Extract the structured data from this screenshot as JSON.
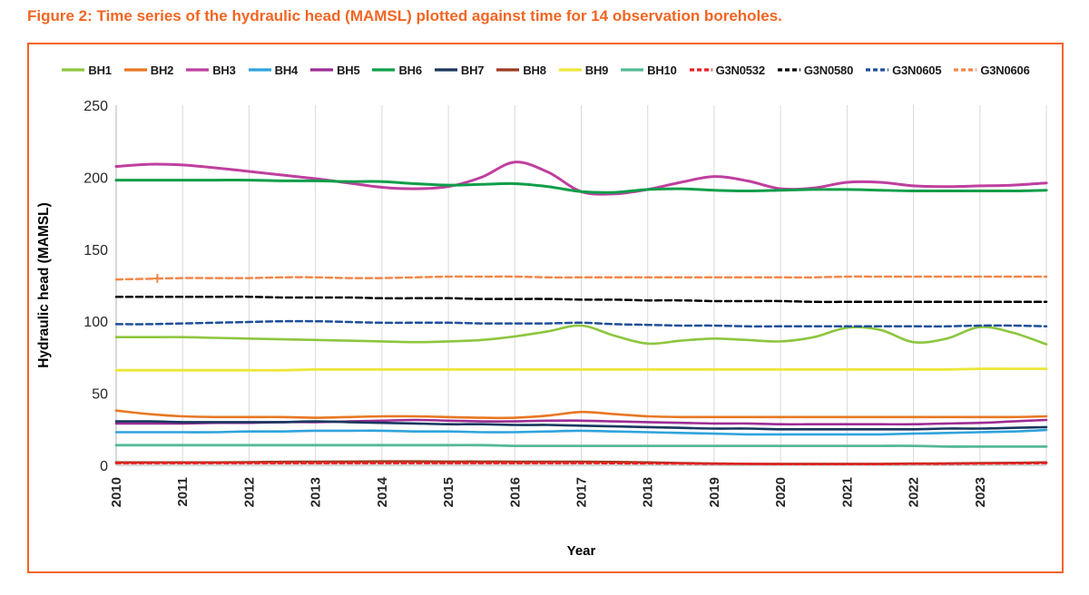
{
  "chart_data": {
    "type": "line",
    "title": "Figure 2: Time series of the hydraulic head (MAMSL) plotted against time for 14 observation boreholes.",
    "xlabel": "Year",
    "ylabel": "Hydraulic head (MAMSL)",
    "xlim": [
      2010,
      2024
    ],
    "ylim": [
      0,
      250
    ],
    "x_ticks": [
      2010,
      2011,
      2012,
      2013,
      2014,
      2015,
      2016,
      2017,
      2018,
      2019,
      2020,
      2021,
      2022,
      2023
    ],
    "y_ticks": [
      0,
      50,
      100,
      150,
      200,
      250
    ],
    "grid": "vertical-only",
    "legend_position": "top",
    "title_color": "#F26522",
    "border_color": "#F26522",
    "gridline_color": "#D9D9D9",
    "axis_color": "#BFBFBF",
    "x_start": 2010,
    "x_step": 0.5,
    "series": [
      {
        "name": "BH1",
        "color": "#8DC63F",
        "dash": "",
        "width": 2.6,
        "values": [
          89,
          89,
          89,
          88.5,
          88,
          87.5,
          87,
          86.5,
          86,
          85.5,
          86,
          87,
          89.5,
          93,
          97,
          90,
          84.5,
          86.5,
          88,
          87,
          86,
          89,
          95.5,
          94,
          85.5,
          88,
          96,
          92,
          84
        ]
      },
      {
        "name": "BH2",
        "color": "#E87722",
        "dash": "",
        "width": 2.6,
        "values": [
          38,
          35.5,
          34,
          33.5,
          33.5,
          33.5,
          33,
          33.5,
          34,
          34,
          33.5,
          33,
          33,
          34.5,
          37,
          35.5,
          34,
          33.5,
          33.5,
          33.5,
          33.5,
          33.5,
          33.5,
          33.5,
          33.5,
          33.5,
          33.5,
          33.5,
          34
        ]
      },
      {
        "name": "BH3",
        "color": "#BF3F9F",
        "dash": "",
        "width": 3,
        "values": [
          207.5,
          209,
          208.5,
          206.5,
          204,
          201.5,
          199,
          196,
          193,
          192,
          193.5,
          200,
          210.5,
          203.5,
          190,
          188.5,
          191.5,
          196.5,
          200.5,
          197.5,
          192,
          192.5,
          196.5,
          196.5,
          194,
          193.5,
          194,
          194.5,
          196
        ]
      },
      {
        "name": "BH4",
        "color": "#2FA3DC",
        "dash": "",
        "width": 2.6,
        "values": [
          23,
          23,
          23,
          23,
          23.5,
          23.5,
          24,
          24,
          24,
          23.5,
          23.5,
          23,
          23,
          23.5,
          24,
          23.5,
          23,
          22.5,
          22,
          21.5,
          21.5,
          21.5,
          21.5,
          21.5,
          22,
          22.5,
          23,
          23.5,
          24.5
        ]
      },
      {
        "name": "BH5",
        "color": "#9C2C94",
        "dash": "",
        "width": 2.6,
        "values": [
          29,
          29,
          29,
          29.5,
          29.5,
          30,
          30,
          30.5,
          31,
          31.5,
          31,
          30.5,
          30.5,
          31,
          31,
          30.5,
          30,
          29.5,
          29,
          29,
          28.5,
          28.5,
          28.5,
          28.5,
          28.5,
          29,
          29.5,
          30.5,
          31.5
        ]
      },
      {
        "name": "BH6",
        "color": "#0E9E49",
        "dash": "",
        "width": 3,
        "values": [
          198,
          198,
          198,
          198,
          198,
          197.5,
          197.5,
          197,
          197,
          195.5,
          194.5,
          195,
          195.5,
          193.5,
          190,
          189.5,
          191.5,
          192,
          191,
          190.5,
          191,
          191.5,
          191.5,
          191,
          190.5,
          190.5,
          190.5,
          190.5,
          191
        ]
      },
      {
        "name": "BH7",
        "color": "#17375E",
        "dash": "",
        "width": 2.6,
        "values": [
          30.5,
          30.5,
          30,
          30,
          30,
          30,
          30.5,
          30,
          29.5,
          29,
          28.5,
          28.5,
          28,
          28,
          27.5,
          27,
          26.5,
          26,
          25.5,
          25.5,
          25,
          25,
          25,
          25,
          25,
          25.5,
          25.5,
          26,
          26.5
        ]
      },
      {
        "name": "BH8",
        "color": "#9C3A1D",
        "dash": "",
        "width": 2.6,
        "values": [
          2,
          2,
          2,
          2,
          2.2,
          2.4,
          2.5,
          2.6,
          2.7,
          2.7,
          2.6,
          2.6,
          2.5,
          2.5,
          2.5,
          2.3,
          2,
          1.6,
          1.2,
          1,
          1,
          1,
          1,
          1,
          1.2,
          1.3,
          1.5,
          1.7,
          2
        ]
      },
      {
        "name": "BH9",
        "color": "#EDE637",
        "dash": "",
        "width": 2.8,
        "values": [
          66,
          66,
          66,
          66,
          66,
          66,
          66.5,
          66.5,
          66.5,
          66.5,
          66.5,
          66.5,
          66.5,
          66.5,
          66.5,
          66.5,
          66.5,
          66.5,
          66.5,
          66.5,
          66.5,
          66.5,
          66.5,
          66.5,
          66.5,
          66.5,
          67,
          67,
          67
        ]
      },
      {
        "name": "BH10",
        "color": "#55B995",
        "dash": "",
        "width": 2.8,
        "values": [
          14,
          14,
          14,
          14,
          14,
          14,
          14,
          14,
          14,
          14,
          14,
          14,
          13.5,
          13.5,
          13.5,
          13.5,
          13.5,
          13.5,
          13.5,
          13.5,
          13.5,
          13.5,
          13.5,
          13.5,
          13.5,
          13,
          13,
          13,
          13
        ]
      },
      {
        "name": "G3N0532",
        "color": "#EC1C24",
        "dash": "5 3.5",
        "width": 2.5,
        "values": [
          1.5,
          1.5,
          1.5,
          1.5,
          1.5,
          1.5,
          1.5,
          1.5,
          1.5,
          1.5,
          1.5,
          1.5,
          1.5,
          1.5,
          1.5,
          1.4,
          1.3,
          1.2,
          1,
          1,
          0.8,
          0.8,
          0.8,
          0.8,
          1,
          1,
          1.2,
          1.3,
          1.5
        ]
      },
      {
        "name": "G3N0580",
        "color": "#000000",
        "dash": "7 4",
        "width": 2.5,
        "values": [
          117,
          117,
          117,
          117,
          117,
          116.5,
          116.5,
          116.5,
          116,
          116,
          116,
          115.5,
          115.5,
          115.5,
          115,
          115,
          114.5,
          114.5,
          114,
          114,
          114,
          113.5,
          113.5,
          113.5,
          113.5,
          113.5,
          113.5,
          113.5,
          113.5
        ]
      },
      {
        "name": "G3N0605",
        "color": "#1F4E9B",
        "dash": "7 4",
        "width": 2.5,
        "values": [
          98,
          98,
          98.5,
          99,
          99.5,
          100,
          100,
          99.5,
          99,
          99,
          99,
          98.5,
          98.5,
          98.5,
          99,
          98,
          97.5,
          97,
          97,
          96.5,
          96.5,
          96.5,
          96.5,
          96.5,
          96.5,
          96.5,
          97,
          97,
          96.5
        ]
      },
      {
        "name": "G3N0606",
        "color": "#F4874B",
        "dash": "7 4",
        "width": 2.5,
        "values": [
          129,
          129.5,
          130,
          130,
          130,
          130.5,
          130.5,
          130,
          130,
          130.5,
          131,
          131,
          131,
          130.5,
          130.5,
          130.5,
          130.5,
          130.5,
          130.5,
          130.5,
          130.5,
          130.5,
          131,
          131,
          131,
          131,
          131,
          131,
          131
        ]
      }
    ],
    "annotations": [
      {
        "type": "plus-marker",
        "x": 2010.62,
        "y": 129.8,
        "color": "#F4874B"
      }
    ]
  }
}
